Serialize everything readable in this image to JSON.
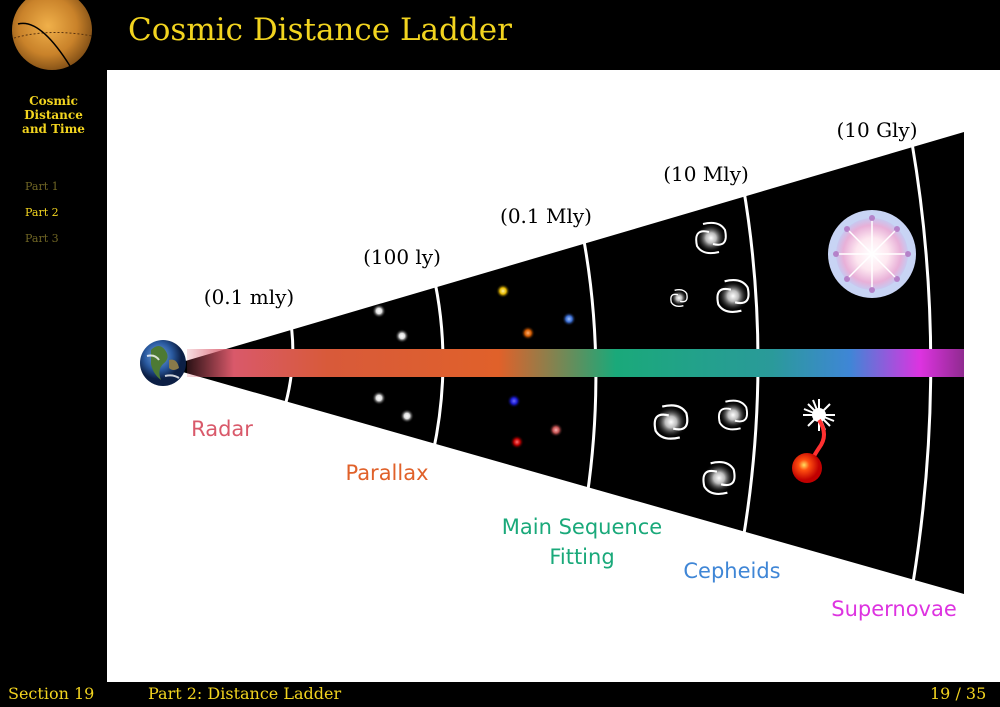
{
  "header": {
    "title": "Cosmic Distance Ladder"
  },
  "sidebar": {
    "title_lines": [
      "Cosmic",
      "Distance",
      "and Time"
    ],
    "items": [
      {
        "label": "Part 1",
        "active": false
      },
      {
        "label": "Part 2",
        "active": true
      },
      {
        "label": "Part 3",
        "active": false
      }
    ]
  },
  "diagram": {
    "distance_labels": [
      "(0.1 mly)",
      "(100 ly)",
      "(0.1 Mly)",
      "(10 Mly)",
      "(10 Gly)"
    ],
    "methods": [
      {
        "lines": [
          "Radar"
        ],
        "color": "#d9596a"
      },
      {
        "lines": [
          "Parallax"
        ],
        "color": "#e0612a"
      },
      {
        "lines": [
          "Main Sequence",
          "Fitting"
        ],
        "color": "#1aa97a"
      },
      {
        "lines": [
          "Cepheids"
        ],
        "color": "#3f86d6"
      },
      {
        "lines": [
          "Supernovae"
        ],
        "color": "#dd33e0"
      }
    ]
  },
  "footer": {
    "section": "Section 19",
    "part": "Part 2:  Distance Ladder",
    "page": "19 / 35"
  }
}
